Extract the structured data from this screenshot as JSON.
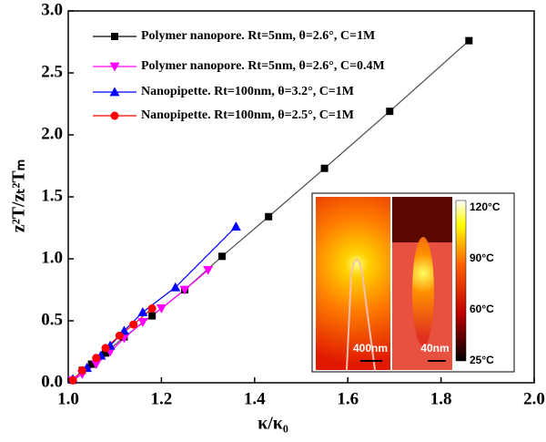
{
  "chart_data": {
    "type": "line",
    "x_label": "κ/κ₀",
    "y_label": "z²T/zₜ²Tₘ",
    "xlim": [
      1.0,
      2.0
    ],
    "ylim": [
      0.0,
      3.0
    ],
    "xticks": [
      {
        "value": 1.0,
        "label": "1.0"
      },
      {
        "value": 1.2,
        "label": "1.2"
      },
      {
        "value": 1.4,
        "label": "1.4"
      },
      {
        "value": 1.6,
        "label": "1.6"
      },
      {
        "value": 1.8,
        "label": "1.8"
      },
      {
        "value": 2.0,
        "label": "2.0"
      }
    ],
    "yticks": [
      {
        "value": 0.0,
        "label": "0.0"
      },
      0.5,
      {
        "value": 1.0,
        "label": "1.0"
      },
      1.5,
      {
        "value": 2.0,
        "label": "2.0"
      },
      2.5,
      {
        "value": 3.0,
        "label": "3.0"
      }
    ],
    "legend": "upper left",
    "series": [
      {
        "name": "Polymer nanopore. Rt=5nm,  θ=2.6°, C=1M",
        "color": "#000000",
        "marker": "square",
        "x": [
          1.01,
          1.03,
          1.05,
          1.08,
          1.12,
          1.18,
          1.25,
          1.33,
          1.43,
          1.55,
          1.69,
          1.86
        ],
        "values": [
          0.02,
          0.1,
          0.15,
          0.24,
          0.37,
          0.54,
          0.75,
          1.02,
          1.34,
          1.73,
          2.19,
          2.76
        ]
      },
      {
        "name": "Polymer nanopore. Rt=5nm,  θ=2.6°, C=0.4M",
        "color": "#ff00ff",
        "marker": "triangle-down",
        "x": [
          1.01,
          1.03,
          1.06,
          1.09,
          1.12,
          1.16,
          1.2,
          1.25,
          1.3
        ],
        "values": [
          0.02,
          0.07,
          0.15,
          0.25,
          0.36,
          0.49,
          0.6,
          0.75,
          0.91
        ]
      },
      {
        "name": "Nanopipette. Rt=100nm, θ=3.2°, C=1M",
        "color": "#0000ff",
        "marker": "triangle-up",
        "x": [
          1.01,
          1.04,
          1.07,
          1.09,
          1.12,
          1.16,
          1.23,
          1.36
        ],
        "values": [
          0.03,
          0.12,
          0.22,
          0.3,
          0.42,
          0.57,
          0.77,
          1.26
        ]
      },
      {
        "name": "Nanopipette. Rt=100nm, θ=2.5°, C=1M",
        "color": "#ff0000",
        "marker": "circle",
        "x": [
          1.01,
          1.03,
          1.06,
          1.08,
          1.11,
          1.14,
          1.18
        ],
        "values": [
          0.02,
          0.1,
          0.2,
          0.28,
          0.38,
          0.47,
          0.6
        ]
      }
    ],
    "inset": {
      "scale_bars": [
        "400nm",
        "40nm"
      ],
      "colorbar_labels": [
        "120°C",
        "90°C",
        "60°C",
        "25°C"
      ]
    }
  }
}
